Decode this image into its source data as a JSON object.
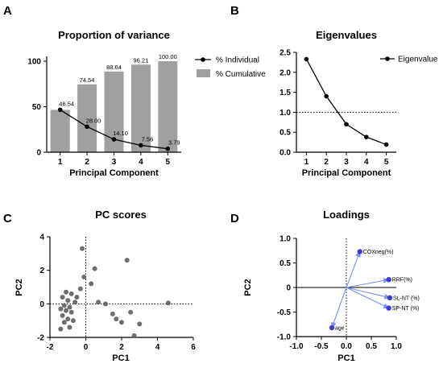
{
  "panels": {
    "A": "A",
    "B": "B",
    "C": "C",
    "D": "D"
  },
  "chart_data": [
    {
      "panel": "A",
      "type": "bar",
      "title": "Proportion of variance",
      "xlabel": "Principal Component",
      "ylabel": "",
      "categories": [
        "1",
        "2",
        "3",
        "4",
        "5"
      ],
      "ylim": [
        0,
        100
      ],
      "yticks": [
        0,
        50,
        100
      ],
      "series": [
        {
          "name": "% Individual",
          "kind": "line",
          "color": "#000000",
          "values": [
            46.54,
            28.0,
            14.1,
            7.56,
            3.79
          ],
          "labels": [
            "46.54",
            "28.00",
            "14.10",
            "7.56",
            "3.79"
          ]
        },
        {
          "name": "% Cumulative",
          "kind": "bar",
          "color": "#a0a0a0",
          "values": [
            46.54,
            74.54,
            88.64,
            96.21,
            100.0
          ],
          "labels": [
            "",
            "74.54",
            "88.64",
            "96.21",
            "100.00"
          ]
        }
      ],
      "legend": "top-right"
    },
    {
      "panel": "B",
      "type": "line",
      "title": "Eigenvalues",
      "xlabel": "Principal Component",
      "ylabel": "",
      "x": [
        1,
        2,
        3,
        4,
        5
      ],
      "xlim": [
        0.5,
        5.5
      ],
      "ylim": [
        0,
        2.5
      ],
      "yticks": [
        "0.0",
        "0.5",
        "1.0",
        "1.5",
        "2.0",
        "2.5"
      ],
      "reference_line": 1.0,
      "series": [
        {
          "name": "Eigenvalue",
          "color": "#000000",
          "values": [
            2.33,
            1.4,
            0.7,
            0.38,
            0.19
          ]
        }
      ],
      "legend": "top-right"
    },
    {
      "panel": "C",
      "type": "scatter",
      "title": "PC scores",
      "xlabel": "PC1",
      "ylabel": "PC2",
      "xlim": [
        -2,
        6
      ],
      "ylim": [
        -2,
        4
      ],
      "xticks": [
        "-2",
        "0",
        "2",
        "4",
        "6"
      ],
      "yticks": [
        "-2",
        "0",
        "2",
        "4"
      ],
      "points": [
        [
          -0.2,
          3.3
        ],
        [
          2.3,
          2.6
        ],
        [
          0.5,
          2.1
        ],
        [
          0.3,
          1.2
        ],
        [
          -0.1,
          1.6
        ],
        [
          -0.3,
          0.9
        ],
        [
          -0.5,
          0.4
        ],
        [
          -0.8,
          0.6
        ],
        [
          -1.1,
          0.7
        ],
        [
          -1.3,
          0.4
        ],
        [
          -1.0,
          0.2
        ],
        [
          -0.9,
          -0.2
        ],
        [
          -0.6,
          0.1
        ],
        [
          -1.2,
          -0.1
        ],
        [
          -1.4,
          -0.3
        ],
        [
          -1.1,
          -0.4
        ],
        [
          -0.8,
          -0.5
        ],
        [
          -1.3,
          -0.7
        ],
        [
          -1.0,
          -0.9
        ],
        [
          -1.2,
          -1.1
        ],
        [
          -1.4,
          -1.5
        ],
        [
          -0.9,
          -1.4
        ],
        [
          -0.7,
          -1.0
        ],
        [
          0.7,
          0.1
        ],
        [
          1.1,
          0.0
        ],
        [
          1.5,
          -0.6
        ],
        [
          1.7,
          -0.9
        ],
        [
          2.0,
          -1.1
        ],
        [
          2.5,
          -0.5
        ],
        [
          3.0,
          -1.2
        ],
        [
          2.7,
          -1.9
        ],
        [
          4.6,
          0.05
        ]
      ]
    },
    {
      "panel": "D",
      "type": "scatter",
      "title": "Loadings",
      "xlabel": "PC1",
      "ylabel": "PC2",
      "xlim": [
        -1.0,
        1.0
      ],
      "ylim": [
        -1.0,
        1.0
      ],
      "xticks": [
        "-1.0",
        "-0.5",
        "0.0",
        "0.5",
        "1.0"
      ],
      "yticks": [
        "-1.0",
        "-0.5",
        "0",
        "0.5",
        "1.0"
      ],
      "color": "#3b3bdb",
      "arrow_color": "#7a8ff0",
      "loadings": [
        {
          "name": "COXneg(%)",
          "x": 0.27,
          "y": 0.73
        },
        {
          "name": "RRF(%)",
          "x": 0.85,
          "y": 0.16
        },
        {
          "name": "SL-NT (%)",
          "x": 0.87,
          "y": -0.21
        },
        {
          "name": "SP-NT (%)",
          "x": 0.85,
          "y": -0.42
        },
        {
          "name": "age",
          "x": -0.29,
          "y": -0.82
        }
      ]
    }
  ]
}
